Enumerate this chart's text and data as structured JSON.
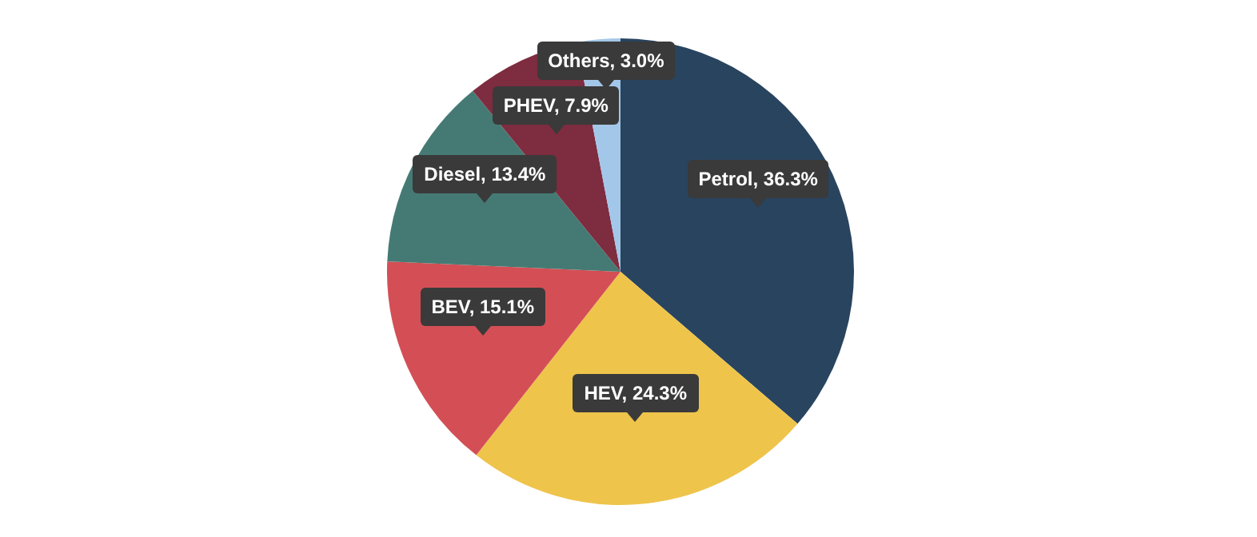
{
  "chart_data": {
    "type": "pie",
    "categories": [
      "Petrol",
      "HEV",
      "BEV",
      "Diesel",
      "PHEV",
      "Others"
    ],
    "values": [
      36.3,
      24.3,
      15.1,
      13.4,
      7.9,
      3.0
    ],
    "value_labels": [
      ", 36.3%",
      ", 24.3%",
      ", 15.1%",
      ", 13.4%",
      ", 7.9%",
      ", 3.0%"
    ],
    "colors": [
      "#29445f",
      "#eec44b",
      "#d34f55",
      "#457a74",
      "#7e2c3f",
      "#a3c7e8"
    ],
    "legend": false
  }
}
